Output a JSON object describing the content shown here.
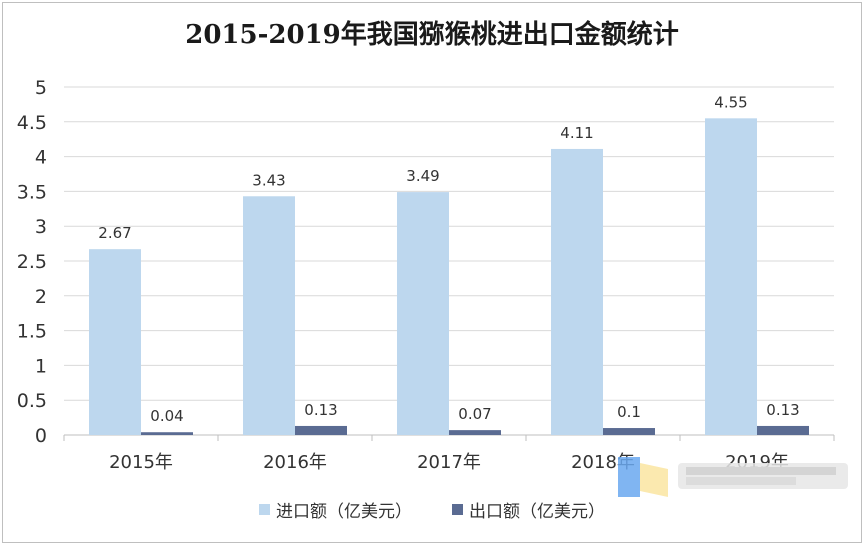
{
  "chart_data": {
    "type": "bar",
    "title": "2015-2019年我国猕猴桃进出口金额统计",
    "categories": [
      "2015年",
      "2016年",
      "2017年",
      "2018年",
      "2019年"
    ],
    "series": [
      {
        "name": "进口额（亿美元）",
        "values": [
          2.67,
          3.43,
          3.49,
          4.11,
          4.55
        ],
        "labels": [
          "2.67",
          "3.43",
          "3.49",
          "4.11",
          "4.55"
        ],
        "color": "#bdd7ee"
      },
      {
        "name": "出口额（亿美元）",
        "values": [
          0.04,
          0.13,
          0.07,
          0.1,
          0.13
        ],
        "labels": [
          "0.04",
          "0.13",
          "0.07",
          "0.1",
          "0.13"
        ],
        "color": "#5a6b92"
      }
    ],
    "ylim": [
      0,
      5
    ],
    "yticks": [
      "0",
      "0.5",
      "1",
      "1.5",
      "2",
      "2.5",
      "3",
      "3.5",
      "4",
      "4.5",
      "5"
    ],
    "grid": true,
    "legend": "bottom"
  }
}
